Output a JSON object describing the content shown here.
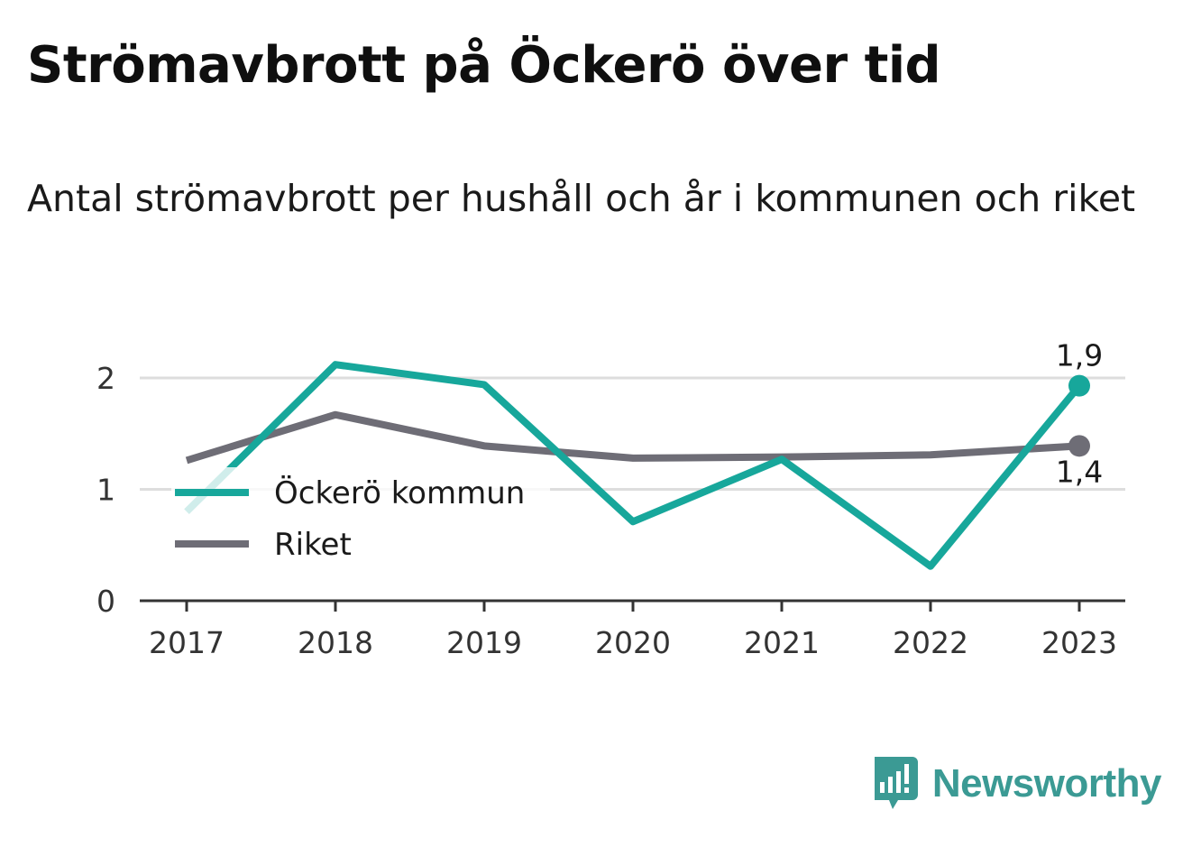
{
  "header": {
    "title": "Strömavbrott på Öckerö över tid",
    "subtitle": "Antal strömavbrott per hushåll och år i kommunen och riket"
  },
  "chart_data": {
    "type": "line",
    "categories": [
      "2017",
      "2018",
      "2019",
      "2020",
      "2021",
      "2022",
      "2023"
    ],
    "series": [
      {
        "name": "Öckerö kommun",
        "color": "#17a79b",
        "values": [
          0.8,
          2.12,
          1.94,
          0.71,
          1.27,
          0.31,
          1.93
        ]
      },
      {
        "name": "Riket",
        "color": "#6e6d76",
        "values": [
          1.26,
          1.67,
          1.39,
          1.28,
          1.29,
          1.31,
          1.39
        ]
      }
    ],
    "end_labels": [
      "1,9",
      "1,4"
    ],
    "ylim": [
      0,
      2.2
    ],
    "yticks": [
      0,
      1,
      2
    ],
    "ytick_labels": [
      "0",
      "1",
      "2"
    ],
    "grid": true,
    "legend_position": "inside-left"
  },
  "brand": {
    "name": "Newsworthy",
    "color": "#3b9a94",
    "icon": "newsworthy-logo-icon"
  }
}
